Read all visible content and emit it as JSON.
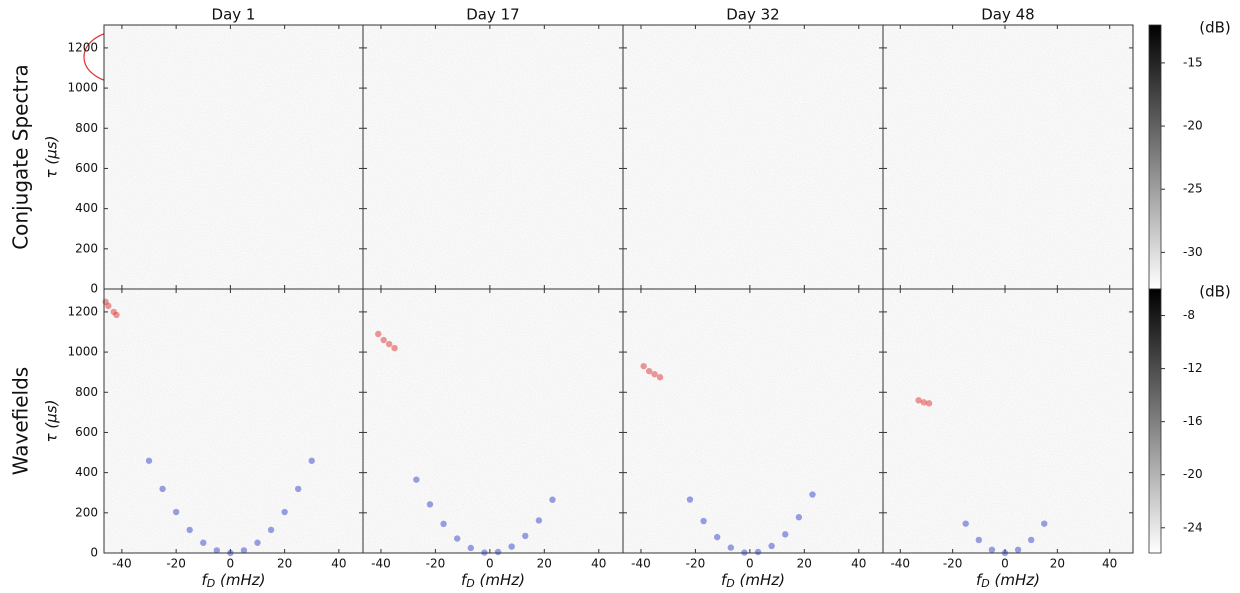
{
  "figure": {
    "row_labels": [
      "Conjugate Spectra",
      "Wavefields"
    ],
    "colorbars": [
      {
        "label": "(dB)",
        "lim": [
          -32.9,
          -12
        ],
        "ticks": [
          -15,
          -20,
          -25,
          -30
        ]
      },
      {
        "label": "(dB)",
        "lim": [
          -25.9,
          -6
        ],
        "ticks": [
          -8,
          -12,
          -16,
          -20,
          -24
        ]
      }
    ]
  },
  "chart_data": [
    {
      "type": "scatter",
      "title": "Day 1",
      "ylabel": "τ (μs)",
      "xlim": [
        -46.6,
        48.9
      ],
      "ylim": [
        0,
        1314
      ],
      "xticks": [
        -40,
        -20,
        0,
        20,
        40
      ],
      "yticks": [
        0,
        200,
        400,
        600,
        800,
        1000,
        1200
      ],
      "series": []
    },
    {
      "type": "scatter",
      "title": "Day 17",
      "xlim": [
        -46.6,
        48.9
      ],
      "ylim": [
        0,
        1314
      ],
      "xticks": [
        -40,
        -20,
        0,
        20,
        40
      ],
      "yticks": [
        0,
        200,
        400,
        600,
        800,
        1000,
        1200
      ],
      "series": []
    },
    {
      "type": "scatter",
      "title": "Day 32",
      "xlim": [
        -46.6,
        48.9
      ],
      "ylim": [
        0,
        1314
      ],
      "xticks": [
        -40,
        -20,
        0,
        20,
        40
      ],
      "yticks": [
        0,
        200,
        400,
        600,
        800,
        1000,
        1200
      ],
      "series": []
    },
    {
      "type": "scatter",
      "title": "Day 48",
      "xlim": [
        -46.6,
        48.9
      ],
      "ylim": [
        0,
        1314
      ],
      "xticks": [
        -40,
        -20,
        0,
        20,
        40
      ],
      "yticks": [
        0,
        200,
        400,
        600,
        800,
        1000,
        1200
      ],
      "series": []
    },
    {
      "type": "scatter",
      "xlabel": "fD (mHz)",
      "ylabel": "τ (μs)",
      "xlim": [
        -46.6,
        48.9
      ],
      "ylim": [
        0,
        1314
      ],
      "xticks": [
        -40,
        -20,
        0,
        20,
        40
      ],
      "yticks": [
        0,
        200,
        400,
        600,
        800,
        1000,
        1200
      ],
      "series": [
        {
          "color": "#3344cc",
          "x": [
            -30,
            -25,
            -20,
            -15,
            -10,
            -5,
            0,
            5,
            10,
            15,
            20,
            25,
            30
          ],
          "values": [
            459,
            319,
            204,
            115,
            51,
            13,
            0,
            13,
            51,
            115,
            204,
            319,
            459
          ]
        },
        {
          "color": "#dd3333",
          "x": [
            -46,
            -45,
            -43,
            -42
          ],
          "values": [
            1250,
            1230,
            1200,
            1185
          ]
        }
      ]
    },
    {
      "type": "scatter",
      "xlabel": "fD (mHz)",
      "xlim": [
        -46.6,
        48.9
      ],
      "ylim": [
        0,
        1314
      ],
      "xticks": [
        -40,
        -20,
        0,
        20,
        40
      ],
      "yticks": [
        0,
        200,
        400,
        600,
        800,
        1000,
        1200
      ],
      "series": [
        {
          "color": "#3344cc",
          "x": [
            -27,
            -22,
            -17,
            -12,
            -7,
            -2,
            3,
            8,
            13,
            18,
            23
          ],
          "values": [
            365,
            242,
            145,
            72,
            25,
            2,
            5,
            32,
            85,
            162,
            265
          ]
        },
        {
          "color": "#dd3333",
          "x": [
            -41,
            -39,
            -37,
            -35
          ],
          "values": [
            1090,
            1060,
            1040,
            1020
          ]
        }
      ]
    },
    {
      "type": "scatter",
      "xlabel": "fD (mHz)",
      "xlim": [
        -46.6,
        48.9
      ],
      "ylim": [
        0,
        1314
      ],
      "xticks": [
        -40,
        -20,
        0,
        20,
        40
      ],
      "yticks": [
        0,
        200,
        400,
        600,
        800,
        1000,
        1200
      ],
      "series": [
        {
          "color": "#3344cc",
          "x": [
            -22,
            -17,
            -12,
            -7,
            -2,
            3,
            8,
            13,
            18,
            23
          ],
          "values": [
            266,
            159,
            79,
            27,
            2,
            5,
            35,
            93,
            178,
            291
          ]
        },
        {
          "color": "#dd3333",
          "x": [
            -39,
            -37,
            -35,
            -33
          ],
          "values": [
            930,
            905,
            890,
            875
          ]
        }
      ]
    },
    {
      "type": "scatter",
      "xlabel": "fD (mHz)",
      "xlim": [
        -46.6,
        48.9
      ],
      "ylim": [
        0,
        1314
      ],
      "xticks": [
        -40,
        -20,
        0,
        20,
        40
      ],
      "yticks": [
        0,
        200,
        400,
        600,
        800,
        1000,
        1200
      ],
      "series": [
        {
          "color": "#3344cc",
          "x": [
            -15,
            -10,
            -5,
            0,
            5,
            10,
            15
          ],
          "values": [
            146,
            65,
            16,
            0,
            16,
            65,
            146
          ]
        },
        {
          "color": "#dd3333",
          "x": [
            -33,
            -31,
            -29
          ],
          "values": [
            760,
            750,
            745
          ]
        }
      ]
    }
  ]
}
